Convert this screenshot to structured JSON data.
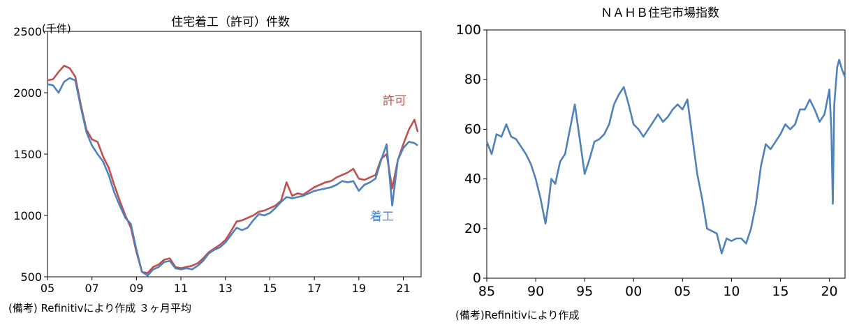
{
  "chart_data": [
    {
      "type": "line",
      "title": "住宅着工（許可）件数",
      "ylabel": "(千件)",
      "note": "(備考) Refinitivにより作成 ３ヶ月平均",
      "x_range": [
        2005,
        2021.8
      ],
      "ylim": [
        500,
        2500
      ],
      "y_ticks": [
        "500",
        "1000",
        "1500",
        "2000",
        "2500"
      ],
      "x_ticks": [
        {
          "x": 2005,
          "label": "05"
        },
        {
          "x": 2007,
          "label": "07"
        },
        {
          "x": 2009,
          "label": "09"
        },
        {
          "x": 2011,
          "label": "11"
        },
        {
          "x": 2013,
          "label": "13"
        },
        {
          "x": 2015,
          "label": "15"
        },
        {
          "x": 2017,
          "label": "17"
        },
        {
          "x": 2019,
          "label": "19"
        },
        {
          "x": 2021,
          "label": "21"
        }
      ],
      "grid": false,
      "series": [
        {
          "name": "許可",
          "color": "#c0504d",
          "x": [
            2005.0,
            2005.25,
            2005.5,
            2005.75,
            2006.0,
            2006.25,
            2006.5,
            2006.75,
            2007.0,
            2007.25,
            2007.5,
            2007.75,
            2008.0,
            2008.25,
            2008.5,
            2008.75,
            2009.0,
            2009.25,
            2009.5,
            2009.75,
            2010.0,
            2010.25,
            2010.5,
            2010.75,
            2011.0,
            2011.25,
            2011.5,
            2011.75,
            2012.0,
            2012.25,
            2012.5,
            2012.75,
            2013.0,
            2013.25,
            2013.5,
            2013.75,
            2014.0,
            2014.25,
            2014.5,
            2014.75,
            2015.0,
            2015.25,
            2015.5,
            2015.75,
            2016.0,
            2016.25,
            2016.5,
            2016.75,
            2017.0,
            2017.25,
            2017.5,
            2017.75,
            2018.0,
            2018.25,
            2018.5,
            2018.75,
            2019.0,
            2019.25,
            2019.5,
            2019.75,
            2020.0,
            2020.25,
            2020.5,
            2020.75,
            2021.0,
            2021.25,
            2021.5,
            2021.65
          ],
          "values": [
            2100,
            2110,
            2170,
            2220,
            2200,
            2130,
            1900,
            1700,
            1620,
            1600,
            1480,
            1390,
            1250,
            1120,
            1000,
            900,
            700,
            540,
            530,
            580,
            600,
            640,
            650,
            580,
            570,
            580,
            590,
            610,
            650,
            700,
            730,
            760,
            800,
            870,
            950,
            960,
            980,
            1000,
            1030,
            1040,
            1060,
            1080,
            1120,
            1270,
            1160,
            1180,
            1170,
            1200,
            1230,
            1250,
            1270,
            1280,
            1310,
            1330,
            1350,
            1380,
            1300,
            1290,
            1310,
            1330,
            1460,
            1500,
            1220,
            1450,
            1580,
            1700,
            1780,
            1680
          ]
        },
        {
          "name": "着工",
          "color": "#4f81bd",
          "x": [
            2005.0,
            2005.25,
            2005.5,
            2005.75,
            2006.0,
            2006.25,
            2006.5,
            2006.75,
            2007.0,
            2007.25,
            2007.5,
            2007.75,
            2008.0,
            2008.25,
            2008.5,
            2008.75,
            2009.0,
            2009.25,
            2009.5,
            2009.75,
            2010.0,
            2010.25,
            2010.5,
            2010.75,
            2011.0,
            2011.25,
            2011.5,
            2011.75,
            2012.0,
            2012.25,
            2012.5,
            2012.75,
            2013.0,
            2013.25,
            2013.5,
            2013.75,
            2014.0,
            2014.25,
            2014.5,
            2014.75,
            2015.0,
            2015.25,
            2015.5,
            2015.75,
            2016.0,
            2016.25,
            2016.5,
            2016.75,
            2017.0,
            2017.25,
            2017.5,
            2017.75,
            2018.0,
            2018.25,
            2018.5,
            2018.75,
            2019.0,
            2019.25,
            2019.5,
            2019.75,
            2020.0,
            2020.25,
            2020.5,
            2020.75,
            2021.0,
            2021.25,
            2021.5,
            2021.65
          ],
          "values": [
            2070,
            2060,
            2000,
            2090,
            2120,
            2100,
            1880,
            1680,
            1570,
            1500,
            1440,
            1330,
            1190,
            1080,
            980,
            930,
            720,
            540,
            510,
            560,
            580,
            620,
            630,
            570,
            560,
            570,
            560,
            590,
            630,
            690,
            720,
            740,
            780,
            840,
            900,
            880,
            900,
            960,
            1010,
            1000,
            1020,
            1060,
            1110,
            1150,
            1140,
            1150,
            1160,
            1180,
            1200,
            1210,
            1220,
            1230,
            1250,
            1280,
            1270,
            1280,
            1200,
            1250,
            1270,
            1300,
            1450,
            1580,
            1080,
            1450,
            1550,
            1600,
            1590,
            1570
          ]
        }
      ]
    },
    {
      "type": "line",
      "title": "ＮＡＨＢ住宅市場指数",
      "note": "(備考)Refinitivにより作成",
      "x_range": [
        1985,
        2021.6
      ],
      "ylim": [
        0,
        100
      ],
      "y_ticks": [
        "0",
        "20",
        "40",
        "60",
        "80",
        "100"
      ],
      "x_ticks": [
        {
          "x": 1985,
          "label": "85"
        },
        {
          "x": 1990,
          "label": "90"
        },
        {
          "x": 1995,
          "label": "95"
        },
        {
          "x": 2000,
          "label": "00"
        },
        {
          "x": 2005,
          "label": "05"
        },
        {
          "x": 2010,
          "label": "10"
        },
        {
          "x": 2015,
          "label": "15"
        },
        {
          "x": 2020,
          "label": "20"
        }
      ],
      "grid": false,
      "series": [
        {
          "name": "",
          "color": "#4f81bd",
          "x": [
            1985.0,
            1985.5,
            1986.0,
            1986.5,
            1987.0,
            1987.5,
            1988.0,
            1988.5,
            1989.0,
            1989.5,
            1990.0,
            1990.5,
            1991.0,
            1991.3,
            1991.6,
            1992.0,
            1992.5,
            1993.0,
            1993.5,
            1994.0,
            1994.5,
            1995.0,
            1995.5,
            1996.0,
            1996.5,
            1997.0,
            1997.5,
            1998.0,
            1998.5,
            1999.0,
            1999.5,
            2000.0,
            2000.5,
            2001.0,
            2001.5,
            2002.0,
            2002.5,
            2003.0,
            2003.5,
            2004.0,
            2004.5,
            2005.0,
            2005.5,
            2006.0,
            2006.5,
            2007.0,
            2007.5,
            2008.0,
            2008.5,
            2009.0,
            2009.5,
            2010.0,
            2010.5,
            2011.0,
            2011.5,
            2012.0,
            2012.5,
            2013.0,
            2013.5,
            2014.0,
            2014.5,
            2015.0,
            2015.5,
            2016.0,
            2016.5,
            2017.0,
            2017.5,
            2018.0,
            2018.5,
            2019.0,
            2019.5,
            2020.0,
            2020.2,
            2020.35,
            2020.5,
            2020.8,
            2021.0,
            2021.3,
            2021.6
          ],
          "values": [
            55,
            50,
            58,
            57,
            62,
            57,
            56,
            53,
            50,
            46,
            40,
            32,
            22,
            30,
            40,
            38,
            47,
            50,
            60,
            70,
            56,
            42,
            48,
            55,
            56,
            58,
            62,
            70,
            74,
            77,
            70,
            62,
            60,
            57,
            60,
            63,
            66,
            63,
            65,
            68,
            70,
            68,
            72,
            57,
            42,
            32,
            20,
            19,
            18,
            10,
            16,
            15,
            16,
            16,
            14,
            20,
            30,
            45,
            54,
            52,
            55,
            58,
            62,
            60,
            62,
            68,
            68,
            72,
            68,
            63,
            66,
            76,
            60,
            30,
            70,
            85,
            88,
            84,
            81
          ]
        }
      ]
    }
  ]
}
